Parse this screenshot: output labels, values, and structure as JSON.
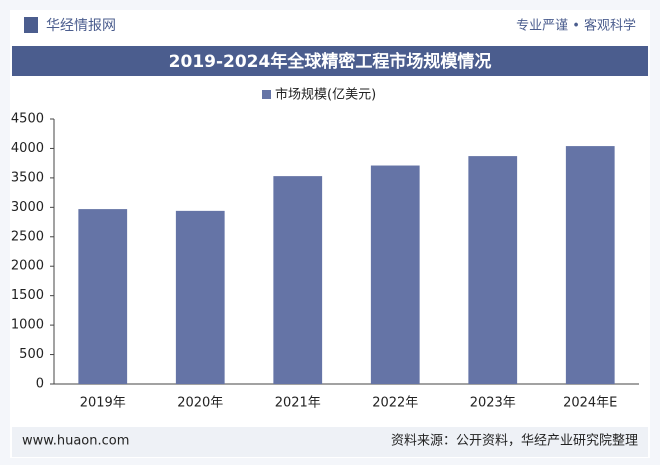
{
  "header": {
    "logo": "华经情报网",
    "slogan": "专业严谨 • 客观科学"
  },
  "chart_data": {
    "type": "bar",
    "title": "2019-2024年全球精密工程市场规模情况",
    "categories": [
      "2019年",
      "2020年",
      "2021年",
      "2022年",
      "2023年",
      "2024年E"
    ],
    "series": [
      {
        "name": "市场规模(亿美元)",
        "color": "#6574a6",
        "values": [
          2970,
          2940,
          3530,
          3710,
          3870,
          4040
        ]
      }
    ],
    "ylim": [
      0,
      4500
    ],
    "yticks": [
      0,
      500,
      1000,
      1500,
      2000,
      2500,
      3000,
      3500,
      4000,
      4500
    ],
    "grid": false
  },
  "footer": {
    "website": "www.huaon.com",
    "source": "资料来源：公开资料，华经产业研究院整理"
  }
}
